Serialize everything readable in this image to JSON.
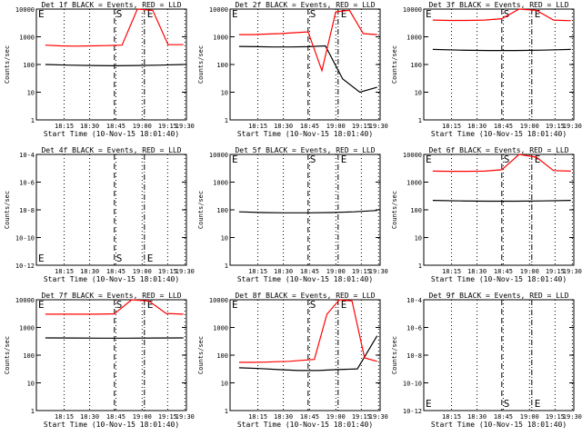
{
  "chart_data": [
    {
      "type": "line",
      "title": "Det 1f BLACK = Events, RED = LLD",
      "ylabel": "Counts/sec",
      "xlabel": "Start Time (10-Nov-15 18:01:40)",
      "y_scale": "log",
      "ylim": [
        1,
        10000
      ],
      "y_ticklabels": [
        "1",
        "10",
        "100",
        "1000",
        "10000"
      ],
      "x_ticklabels": [
        "18:15",
        "18:30",
        "18:45",
        "19:00",
        "19:15",
        "19:30"
      ],
      "markers": {
        "S": "S",
        "E": "E"
      },
      "series": [
        {
          "name": "Events",
          "color": "#000000",
          "values": [
            100,
            95,
            92,
            90,
            92,
            95,
            100
          ]
        },
        {
          "name": "LLD",
          "color": "#ff0000",
          "values": [
            500,
            470,
            460,
            470,
            480,
            500,
            10000,
            9000,
            520,
            520
          ]
        }
      ]
    },
    {
      "type": "line",
      "title": "Det 2f BLACK = Events, RED = LLD",
      "ylabel": "Counts/sec",
      "xlabel": "Start Time (10-Nov-15 18:01:40)",
      "y_scale": "log",
      "ylim": [
        1,
        10000
      ],
      "y_ticklabels": [
        "1",
        "10",
        "100",
        "1000",
        "10000"
      ],
      "x_ticklabels": [
        "18:15",
        "18:30",
        "18:45",
        "19:00",
        "19:15",
        "19:30"
      ],
      "markers": {
        "S": "S",
        "E": "E"
      },
      "series": [
        {
          "name": "Events",
          "color": "#000000",
          "values": [
            450,
            440,
            430,
            430,
            440,
            470,
            30,
            10,
            15
          ]
        },
        {
          "name": "LLD",
          "color": "#ff0000",
          "values": [
            1200,
            1200,
            1250,
            1300,
            1400,
            1500,
            60,
            8000,
            9000,
            1300,
            1200
          ]
        }
      ]
    },
    {
      "type": "line",
      "title": "Det 3f BLACK = Events, RED = LLD",
      "ylabel": "Counts/sec",
      "xlabel": "Start Time (10-Nov-15 18:01:40)",
      "y_scale": "log",
      "ylim": [
        1,
        10000
      ],
      "y_ticklabels": [
        "1",
        "10",
        "100",
        "1000",
        "10000"
      ],
      "x_ticklabels": [
        "18:15",
        "18:30",
        "18:45",
        "19:00",
        "19:15",
        "19:30"
      ],
      "markers": {
        "S": "S",
        "E": "E"
      },
      "series": [
        {
          "name": "Events",
          "color": "#000000",
          "values": [
            350,
            330,
            320,
            320,
            330,
            350
          ]
        },
        {
          "name": "LLD",
          "color": "#ff0000",
          "values": [
            4000,
            3900,
            3900,
            4000,
            4500,
            10000,
            9000,
            4000,
            3800
          ]
        }
      ]
    },
    {
      "type": "line",
      "title": "Det 4f BLACK = Events, RED = LLD",
      "ylabel": "Counts/sec",
      "xlabel": "Start Time (10-Nov-15 18:01:40)",
      "y_scale": "log",
      "ylim": [
        1e-12,
        0.0001
      ],
      "y_ticklabels": [
        "10-12",
        "10-10",
        "10-8",
        "10-6",
        "10-4"
      ],
      "x_ticklabels": [
        "18:15",
        "18:30",
        "18:45",
        "19:00",
        "19:15",
        "19:30"
      ],
      "markers": {
        "S": "S",
        "E": "E"
      },
      "series": []
    },
    {
      "type": "line",
      "title": "Det 5f BLACK = Events, RED = LLD",
      "ylabel": "Counts/sec",
      "xlabel": "Start Time (10-Nov-15 18:01:40)",
      "y_scale": "log",
      "ylim": [
        1,
        10000
      ],
      "y_ticklabels": [
        "1",
        "10",
        "100",
        "1000",
        "10000"
      ],
      "x_ticklabels": [
        "18:15",
        "18:30",
        "18:45",
        "19:00",
        "19:15",
        "19:30"
      ],
      "markers": {
        "S": "S",
        "E": "E"
      },
      "series": [
        {
          "name": "Events",
          "color": "#000000",
          "values": [
            85,
            80,
            78,
            78,
            80,
            85,
            95
          ]
        }
      ]
    },
    {
      "type": "line",
      "title": "Det 6f BLACK = Events, RED = LLD",
      "ylabel": "Counts/sec",
      "xlabel": "Start Time (10-Nov-15 18:01:40)",
      "y_scale": "log",
      "ylim": [
        1,
        10000
      ],
      "y_ticklabels": [
        "1",
        "10",
        "100",
        "1000",
        "10000"
      ],
      "x_ticklabels": [
        "18:15",
        "18:30",
        "18:45",
        "19:00",
        "19:15",
        "19:30"
      ],
      "markers": {
        "S": "S",
        "E": "E"
      },
      "series": [
        {
          "name": "Events",
          "color": "#000000",
          "values": [
            220,
            210,
            205,
            205,
            210,
            220
          ]
        },
        {
          "name": "LLD",
          "color": "#ff0000",
          "values": [
            2500,
            2450,
            2450,
            2500,
            2800,
            10000,
            8000,
            2600,
            2500
          ]
        }
      ]
    },
    {
      "type": "line",
      "title": "Det 7f BLACK = Events, RED = LLD",
      "ylabel": "Counts/sec",
      "xlabel": "Start Time (10-Nov-15 18:01:40)",
      "y_scale": "log",
      "ylim": [
        1,
        10000
      ],
      "y_ticklabels": [
        "1",
        "10",
        "100",
        "1000",
        "10000"
      ],
      "x_ticklabels": [
        "18:15",
        "18:30",
        "18:45",
        "19:00",
        "19:15",
        "19:30"
      ],
      "markers": {
        "S": "S",
        "E": "E"
      },
      "series": [
        {
          "name": "Events",
          "color": "#000000",
          "values": [
            420,
            415,
            410,
            410,
            415,
            420
          ]
        },
        {
          "name": "LLD",
          "color": "#ff0000",
          "values": [
            3000,
            3000,
            3000,
            3000,
            3100,
            10000,
            9000,
            3200,
            3000
          ]
        }
      ]
    },
    {
      "type": "line",
      "title": "Det 8f BLACK = Events, RED = LLD",
      "ylabel": "Counts/sec",
      "xlabel": "Start Time (10-Nov-15 18:01:40)",
      "y_scale": "log",
      "ylim": [
        1,
        10000
      ],
      "y_ticklabels": [
        "1",
        "10",
        "100",
        "1000",
        "10000"
      ],
      "x_ticklabels": [
        "18:15",
        "18:30",
        "18:45",
        "19:00",
        "19:15",
        "19:30"
      ],
      "markers": {
        "S": "S",
        "E": "E"
      },
      "series": [
        {
          "name": "Events",
          "color": "#000000",
          "values": [
            35,
            33,
            30,
            28,
            28,
            30,
            32,
            500
          ]
        },
        {
          "name": "LLD",
          "color": "#ff0000",
          "values": [
            55,
            55,
            56,
            58,
            60,
            65,
            70,
            3000,
            10000,
            9000,
            80,
            60
          ]
        }
      ]
    },
    {
      "type": "line",
      "title": "Det 9f BLACK = Events, RED = LLD",
      "ylabel": "Counts/sec",
      "xlabel": "Start Time (10-Nov-15 18:01:40)",
      "y_scale": "log",
      "ylim": [
        1e-12,
        0.0001
      ],
      "y_ticklabels": [
        "10-12",
        "10-10",
        "10-8",
        "10-6",
        "10-4"
      ],
      "x_ticklabels": [
        "18:15",
        "18:30",
        "18:45",
        "19:00",
        "19:15",
        "19:30"
      ],
      "markers": {
        "S": "S",
        "E": "E"
      },
      "series": []
    }
  ]
}
